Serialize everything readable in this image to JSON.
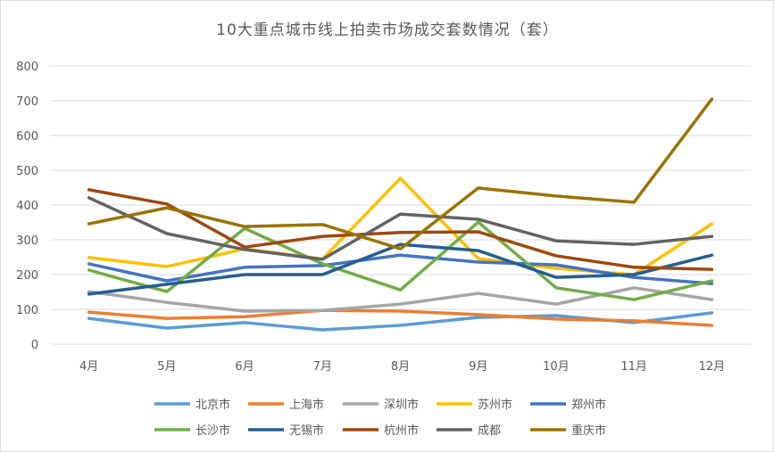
{
  "chart_data": {
    "type": "line",
    "title": "10大重点城市线上拍卖市场成交套数情况（套）",
    "categories": [
      "4月",
      "5月",
      "6月",
      "7月",
      "8月",
      "9月",
      "10月",
      "11月",
      "12月"
    ],
    "ylim": [
      0,
      800
    ],
    "yticks": [
      0,
      100,
      200,
      300,
      400,
      500,
      600,
      700,
      800
    ],
    "grid": true,
    "legend": "bottom",
    "series": [
      {
        "name": "北京市",
        "color": "#5B9BD5",
        "values": [
          74,
          46,
          62,
          41,
          54,
          77,
          82,
          62,
          90
        ]
      },
      {
        "name": "上海市",
        "color": "#ED7D31",
        "values": [
          92,
          74,
          79,
          97,
          95,
          85,
          72,
          67,
          54
        ]
      },
      {
        "name": "深圳市",
        "color": "#A5A5A5",
        "values": [
          151,
          120,
          95,
          97,
          115,
          146,
          115,
          162,
          128
        ]
      },
      {
        "name": "苏州市",
        "color": "#FFC000",
        "values": [
          249,
          223,
          274,
          245,
          477,
          246,
          218,
          200,
          346
        ]
      },
      {
        "name": "郑州市",
        "color": "#4472C4",
        "values": [
          231,
          182,
          221,
          226,
          256,
          236,
          228,
          192,
          174
        ]
      },
      {
        "name": "长沙市",
        "color": "#70AD47",
        "values": [
          213,
          151,
          333,
          231,
          156,
          351,
          162,
          128,
          182
        ]
      },
      {
        "name": "无锡市",
        "color": "#255E91",
        "values": [
          144,
          172,
          200,
          200,
          287,
          269,
          192,
          200,
          256
        ]
      },
      {
        "name": "杭州市",
        "color": "#9E480E",
        "values": [
          444,
          403,
          279,
          310,
          321,
          323,
          254,
          221,
          215
        ]
      },
      {
        "name": "成都",
        "color": "#636363",
        "values": [
          421,
          318,
          272,
          244,
          374,
          359,
          297,
          287,
          310
        ]
      },
      {
        "name": "重庆市",
        "color": "#997300",
        "values": [
          346,
          392,
          338,
          344,
          274,
          449,
          426,
          408,
          705
        ]
      }
    ]
  }
}
